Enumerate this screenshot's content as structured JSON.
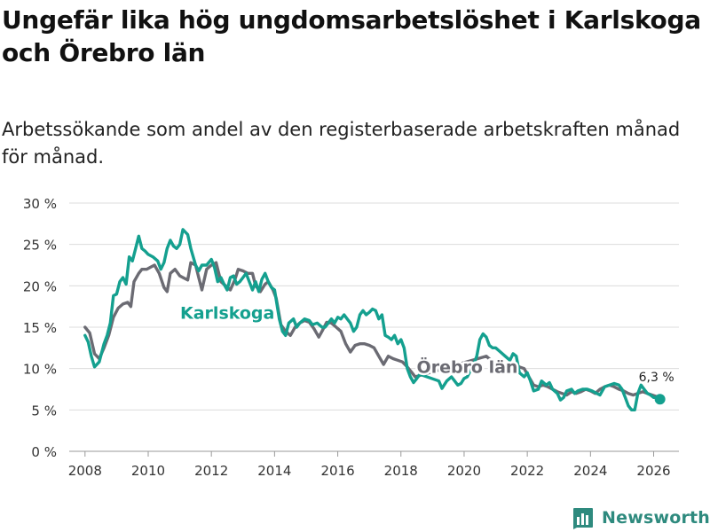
{
  "title": "Ungefär lika hög ungdomsarbetslöshet i Karlskoga och Örebro län",
  "subtitle": "Arbetssökande som andel av den registerbaserade arbetskraften månad för månad.",
  "brand": {
    "name": "Newsworthy",
    "icon": "bar-chart-icon",
    "color": "#2e8a7e"
  },
  "chart_data": {
    "type": "line",
    "title": "Ungefär lika hög ungdomsarbetslöshet i Karlskoga och Örebro län",
    "xlabel": "",
    "ylabel": "",
    "xlim": [
      2007.5,
      2026.8
    ],
    "ylim": [
      0,
      30
    ],
    "grid": true,
    "x_ticks": [
      {
        "value": 2008,
        "label": "2008"
      },
      {
        "value": 2010,
        "label": "2010"
      },
      {
        "value": 2012,
        "label": "2012"
      },
      {
        "value": 2014,
        "label": "2014"
      },
      {
        "value": 2016,
        "label": "2016"
      },
      {
        "value": 2018,
        "label": "2018"
      },
      {
        "value": 2020,
        "label": "2020"
      },
      {
        "value": 2022,
        "label": "2022"
      },
      {
        "value": 2024,
        "label": "2024"
      },
      {
        "value": 2026,
        "label": "2026"
      }
    ],
    "y_ticks": [
      {
        "value": 0,
        "label": "0 %"
      },
      {
        "value": 5,
        "label": "5 %"
      },
      {
        "value": 10,
        "label": "10 %"
      },
      {
        "value": 15,
        "label": "15 %"
      },
      {
        "value": 20,
        "label": "20 %"
      },
      {
        "value": 25,
        "label": "25 %"
      },
      {
        "value": 30,
        "label": "30 %"
      }
    ],
    "series": [
      {
        "name": "Örebro län",
        "label": "Örebro län",
        "color": "#6b6b73",
        "points": [
          [
            2008.0,
            15.0
          ],
          [
            2008.15,
            14.3
          ],
          [
            2008.3,
            11.8
          ],
          [
            2008.45,
            11.2
          ],
          [
            2008.6,
            12.5
          ],
          [
            2008.75,
            14.0
          ],
          [
            2008.9,
            16.2
          ],
          [
            2009.05,
            17.3
          ],
          [
            2009.2,
            17.8
          ],
          [
            2009.35,
            18.0
          ],
          [
            2009.45,
            17.5
          ],
          [
            2009.55,
            20.5
          ],
          [
            2009.7,
            21.5
          ],
          [
            2009.8,
            22.0
          ],
          [
            2009.95,
            22.0
          ],
          [
            2010.1,
            22.3
          ],
          [
            2010.2,
            22.5
          ],
          [
            2010.35,
            21.5
          ],
          [
            2010.5,
            19.8
          ],
          [
            2010.6,
            19.3
          ],
          [
            2010.7,
            21.5
          ],
          [
            2010.85,
            22.0
          ],
          [
            2011.0,
            21.2
          ],
          [
            2011.1,
            21.0
          ],
          [
            2011.25,
            20.7
          ],
          [
            2011.35,
            22.8
          ],
          [
            2011.5,
            22.5
          ],
          [
            2011.6,
            21.0
          ],
          [
            2011.7,
            19.5
          ],
          [
            2011.85,
            22.0
          ],
          [
            2012.0,
            22.5
          ],
          [
            2012.15,
            22.8
          ],
          [
            2012.3,
            20.5
          ],
          [
            2012.45,
            20.0
          ],
          [
            2012.6,
            19.5
          ],
          [
            2012.75,
            20.8
          ],
          [
            2012.85,
            22.0
          ],
          [
            2013.0,
            21.8
          ],
          [
            2013.15,
            21.5
          ],
          [
            2013.3,
            21.5
          ],
          [
            2013.4,
            20.0
          ],
          [
            2013.55,
            19.3
          ],
          [
            2013.7,
            20.2
          ],
          [
            2013.8,
            20.5
          ],
          [
            2013.95,
            19.5
          ],
          [
            2014.05,
            18.5
          ],
          [
            2014.2,
            15.3
          ],
          [
            2014.35,
            14.5
          ],
          [
            2014.5,
            14.0
          ],
          [
            2014.65,
            15.0
          ],
          [
            2014.8,
            15.5
          ],
          [
            2014.95,
            15.8
          ],
          [
            2015.1,
            15.6
          ],
          [
            2015.25,
            14.8
          ],
          [
            2015.4,
            13.8
          ],
          [
            2015.5,
            14.5
          ],
          [
            2015.65,
            15.6
          ],
          [
            2015.8,
            15.5
          ],
          [
            2015.95,
            15.0
          ],
          [
            2016.1,
            14.5
          ],
          [
            2016.25,
            13.0
          ],
          [
            2016.4,
            12.0
          ],
          [
            2016.55,
            12.8
          ],
          [
            2016.7,
            13.0
          ],
          [
            2016.85,
            13.0
          ],
          [
            2017.0,
            12.8
          ],
          [
            2017.15,
            12.5
          ],
          [
            2017.3,
            11.5
          ],
          [
            2017.45,
            10.5
          ],
          [
            2017.6,
            11.5
          ],
          [
            2017.75,
            11.2
          ],
          [
            2017.9,
            11.0
          ],
          [
            2018.05,
            10.8
          ],
          [
            2018.2,
            10.2
          ],
          [
            2018.35,
            9.5
          ],
          [
            2018.45,
            9.0
          ],
          [
            2020.7,
            11.5
          ],
          [
            2020.85,
            11.0
          ],
          [
            2021.0,
            10.5
          ],
          [
            2021.15,
            9.5
          ],
          [
            2021.3,
            9.5
          ],
          [
            2021.45,
            10.5
          ],
          [
            2021.6,
            10.5
          ],
          [
            2021.75,
            10.2
          ],
          [
            2021.9,
            10.0
          ],
          [
            2022.05,
            9.0
          ],
          [
            2022.2,
            8.0
          ],
          [
            2022.35,
            7.8
          ],
          [
            2022.5,
            8.0
          ],
          [
            2022.65,
            7.8
          ],
          [
            2022.8,
            7.5
          ],
          [
            2022.95,
            7.2
          ],
          [
            2023.1,
            7.0
          ],
          [
            2023.25,
            6.8
          ],
          [
            2023.4,
            7.2
          ],
          [
            2023.55,
            7.0
          ],
          [
            2023.7,
            7.2
          ],
          [
            2023.85,
            7.5
          ],
          [
            2024.0,
            7.3
          ],
          [
            2024.15,
            7.0
          ],
          [
            2024.3,
            7.5
          ],
          [
            2024.45,
            7.8
          ],
          [
            2024.6,
            8.0
          ],
          [
            2024.75,
            7.8
          ],
          [
            2024.9,
            7.5
          ],
          [
            2025.05,
            7.3
          ],
          [
            2025.2,
            7.0
          ],
          [
            2025.35,
            6.8
          ],
          [
            2025.5,
            7.0
          ],
          [
            2025.65,
            7.2
          ],
          [
            2025.8,
            7.0
          ],
          [
            2025.95,
            6.8
          ],
          [
            2026.1,
            6.6
          ]
        ]
      },
      {
        "name": "Karlskoga",
        "label": "Karlskoga",
        "color": "#14a08f",
        "points": [
          [
            2008.0,
            14.0
          ],
          [
            2008.1,
            13.2
          ],
          [
            2008.2,
            11.5
          ],
          [
            2008.3,
            10.2
          ],
          [
            2008.45,
            10.8
          ],
          [
            2008.6,
            13.0
          ],
          [
            2008.7,
            14.0
          ],
          [
            2008.8,
            15.5
          ],
          [
            2008.9,
            18.8
          ],
          [
            2009.0,
            19.0
          ],
          [
            2009.1,
            20.5
          ],
          [
            2009.2,
            21.0
          ],
          [
            2009.3,
            20.2
          ],
          [
            2009.4,
            23.5
          ],
          [
            2009.5,
            23.0
          ],
          [
            2009.6,
            24.5
          ],
          [
            2009.7,
            26.0
          ],
          [
            2009.8,
            24.5
          ],
          [
            2009.9,
            24.2
          ],
          [
            2010.0,
            23.8
          ],
          [
            2010.15,
            23.5
          ],
          [
            2010.3,
            23.0
          ],
          [
            2010.4,
            22.0
          ],
          [
            2010.5,
            22.8
          ],
          [
            2010.6,
            24.5
          ],
          [
            2010.7,
            25.5
          ],
          [
            2010.8,
            24.8
          ],
          [
            2010.9,
            24.5
          ],
          [
            2011.0,
            25.0
          ],
          [
            2011.1,
            26.8
          ],
          [
            2011.25,
            26.2
          ],
          [
            2011.35,
            24.5
          ],
          [
            2011.5,
            22.5
          ],
          [
            2011.6,
            21.8
          ],
          [
            2011.7,
            22.5
          ],
          [
            2011.85,
            22.5
          ],
          [
            2012.0,
            23.2
          ],
          [
            2012.1,
            22.2
          ],
          [
            2012.2,
            20.5
          ],
          [
            2012.3,
            21.0
          ],
          [
            2012.4,
            20.2
          ],
          [
            2012.5,
            19.5
          ],
          [
            2012.6,
            21.0
          ],
          [
            2012.7,
            21.2
          ],
          [
            2012.8,
            20.2
          ],
          [
            2012.9,
            20.5
          ],
          [
            2013.0,
            21.0
          ],
          [
            2013.1,
            21.5
          ],
          [
            2013.2,
            20.5
          ],
          [
            2013.3,
            19.5
          ],
          [
            2013.4,
            20.5
          ],
          [
            2013.5,
            19.3
          ],
          [
            2013.6,
            20.8
          ],
          [
            2013.7,
            21.5
          ],
          [
            2013.8,
            20.5
          ],
          [
            2013.9,
            19.8
          ],
          [
            2014.0,
            19.5
          ],
          [
            2014.15,
            16.0
          ],
          [
            2014.25,
            14.5
          ],
          [
            2014.35,
            14.0
          ],
          [
            2014.45,
            15.5
          ],
          [
            2014.6,
            16.0
          ],
          [
            2014.7,
            15.0
          ],
          [
            2014.8,
            15.5
          ],
          [
            2014.95,
            16.0
          ],
          [
            2015.1,
            15.8
          ],
          [
            2015.2,
            15.3
          ],
          [
            2015.35,
            15.5
          ],
          [
            2015.5,
            15.0
          ],
          [
            2015.6,
            15.0
          ],
          [
            2015.7,
            15.5
          ],
          [
            2015.8,
            16.0
          ],
          [
            2015.9,
            15.5
          ],
          [
            2016.0,
            16.2
          ],
          [
            2016.1,
            16.0
          ],
          [
            2016.2,
            16.5
          ],
          [
            2016.3,
            16.0
          ],
          [
            2016.4,
            15.5
          ],
          [
            2016.5,
            14.5
          ],
          [
            2016.6,
            15.0
          ],
          [
            2016.7,
            16.5
          ],
          [
            2016.8,
            17.0
          ],
          [
            2016.9,
            16.5
          ],
          [
            2017.0,
            16.8
          ],
          [
            2017.1,
            17.2
          ],
          [
            2017.2,
            17.0
          ],
          [
            2017.3,
            16.0
          ],
          [
            2017.4,
            16.5
          ],
          [
            2017.5,
            14.0
          ],
          [
            2017.6,
            13.8
          ],
          [
            2017.7,
            13.5
          ],
          [
            2017.8,
            14.0
          ],
          [
            2017.9,
            13.0
          ],
          [
            2018.0,
            13.5
          ],
          [
            2018.1,
            12.5
          ],
          [
            2018.2,
            10.0
          ],
          [
            2018.3,
            9.0
          ],
          [
            2018.4,
            8.3
          ],
          [
            2018.5,
            8.8
          ],
          [
            2018.6,
            9.3
          ],
          [
            2019.2,
            8.5
          ],
          [
            2019.3,
            7.6
          ],
          [
            2019.45,
            8.5
          ],
          [
            2019.6,
            9.0
          ],
          [
            2019.7,
            8.5
          ],
          [
            2019.8,
            8.0
          ],
          [
            2019.9,
            8.2
          ],
          [
            2020.0,
            8.8
          ],
          [
            2020.1,
            9.0
          ],
          [
            2020.3,
            10.5
          ],
          [
            2020.4,
            11.5
          ],
          [
            2020.5,
            13.5
          ],
          [
            2020.6,
            14.2
          ],
          [
            2020.7,
            13.8
          ],
          [
            2020.8,
            12.8
          ],
          [
            2020.9,
            12.5
          ],
          [
            2021.0,
            12.5
          ],
          [
            2021.15,
            12.0
          ],
          [
            2021.3,
            11.5
          ],
          [
            2021.45,
            11.0
          ],
          [
            2021.55,
            11.8
          ],
          [
            2021.65,
            11.5
          ],
          [
            2021.75,
            9.5
          ],
          [
            2021.9,
            9.0
          ],
          [
            2022.0,
            9.5
          ],
          [
            2022.1,
            8.5
          ],
          [
            2022.2,
            7.3
          ],
          [
            2022.35,
            7.5
          ],
          [
            2022.45,
            8.5
          ],
          [
            2022.6,
            8.0
          ],
          [
            2022.7,
            8.3
          ],
          [
            2022.8,
            7.5
          ],
          [
            2022.95,
            7.0
          ],
          [
            2023.05,
            6.2
          ],
          [
            2023.15,
            6.5
          ],
          [
            2023.25,
            7.3
          ],
          [
            2023.4,
            7.5
          ],
          [
            2023.5,
            7.0
          ],
          [
            2023.6,
            7.3
          ],
          [
            2023.75,
            7.5
          ],
          [
            2023.9,
            7.5
          ],
          [
            2024.05,
            7.3
          ],
          [
            2024.2,
            7.0
          ],
          [
            2024.3,
            6.8
          ],
          [
            2024.45,
            7.8
          ],
          [
            2024.6,
            8.0
          ],
          [
            2024.75,
            8.2
          ],
          [
            2024.9,
            8.0
          ],
          [
            2025.0,
            7.5
          ],
          [
            2025.1,
            6.5
          ],
          [
            2025.2,
            5.5
          ],
          [
            2025.3,
            5.0
          ],
          [
            2025.4,
            5.0
          ],
          [
            2025.5,
            7.0
          ],
          [
            2025.6,
            8.0
          ],
          [
            2025.7,
            7.5
          ],
          [
            2025.8,
            7.0
          ],
          [
            2025.9,
            6.8
          ],
          [
            2026.0,
            6.5
          ],
          [
            2026.1,
            6.5
          ],
          [
            2026.2,
            6.3
          ]
        ]
      }
    ],
    "annotations": [
      {
        "text": "6,3 %",
        "x": 2026.2,
        "y": 6.3,
        "series": "Karlskoga"
      }
    ]
  }
}
